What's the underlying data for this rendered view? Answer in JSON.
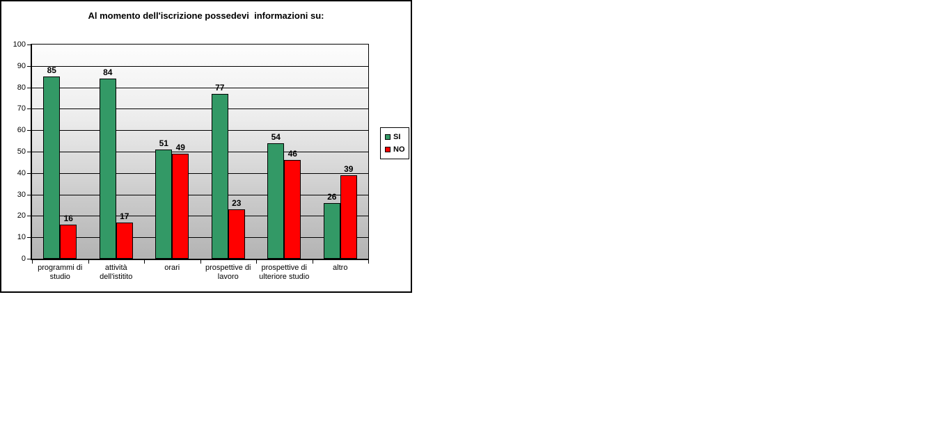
{
  "chart_data": {
    "type": "bar",
    "title": "Al momento dell'iscrizione possedevi  informazioni su:",
    "categories": [
      "programmi di studio",
      "attività dell'istitito",
      "orari",
      "prospettive di lavoro",
      "prospettive di ulteriore studio",
      "altro"
    ],
    "category_lines": [
      [
        "programmi di",
        "studio"
      ],
      [
        "attività",
        "dell'istitito"
      ],
      [
        "orari"
      ],
      [
        "prospettive di",
        "lavoro"
      ],
      [
        "prospettive di",
        "ulteriore studio"
      ],
      [
        "altro"
      ]
    ],
    "series": [
      {
        "name": "SI",
        "color": "#339966",
        "values": [
          85,
          84,
          51,
          77,
          54,
          26
        ]
      },
      {
        "name": "NO",
        "color": "#FF0000",
        "values": [
          16,
          17,
          49,
          23,
          46,
          39
        ]
      }
    ],
    "ylim": [
      0,
      100
    ],
    "ytick_step": 10,
    "ytick_labels": [
      "0",
      "10",
      "20",
      "30",
      "40",
      "50",
      "60",
      "70",
      "80",
      "90",
      "100"
    ],
    "grid": true,
    "legend_position": "right",
    "xlabel": "",
    "ylabel": ""
  },
  "colors": {
    "si_green": "#339966",
    "no_red": "#FF0000",
    "axis_and_border": "#000000",
    "plot_gradient_top": "#FDFDFD",
    "plot_gradient_bottom": "#B3B3B3",
    "chart_background": "#FFFFFF"
  }
}
